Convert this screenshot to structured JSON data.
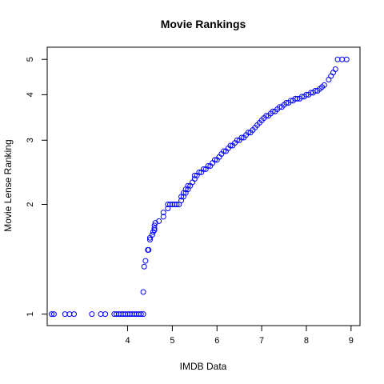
{
  "chart_data": {
    "type": "scatter",
    "title": "Movie Rankings",
    "xlabel": "IMDB Data",
    "ylabel": "Movie Lense Ranking",
    "xlim": [
      2.2,
      9.2
    ],
    "ylim": [
      0.93,
      5.4
    ],
    "y_scale": "log",
    "x_ticks": [
      4,
      5,
      6,
      7,
      8,
      9
    ],
    "y_ticks": [
      1,
      2,
      3,
      4,
      5
    ],
    "grid": false,
    "legend": "none",
    "point_color": "#0000ff",
    "points": [
      [
        2.3,
        1
      ],
      [
        2.35,
        1
      ],
      [
        2.6,
        1
      ],
      [
        2.7,
        1
      ],
      [
        2.8,
        1
      ],
      [
        3.2,
        1
      ],
      [
        3.4,
        1
      ],
      [
        3.5,
        1
      ],
      [
        3.7,
        1
      ],
      [
        3.75,
        1
      ],
      [
        3.8,
        1
      ],
      [
        3.85,
        1
      ],
      [
        3.9,
        1
      ],
      [
        3.95,
        1
      ],
      [
        4.0,
        1
      ],
      [
        4.05,
        1
      ],
      [
        4.1,
        1
      ],
      [
        4.15,
        1
      ],
      [
        4.2,
        1
      ],
      [
        4.25,
        1
      ],
      [
        4.3,
        1
      ],
      [
        4.35,
        1
      ],
      [
        4.35,
        1.15
      ],
      [
        4.37,
        1.35
      ],
      [
        4.4,
        1.4
      ],
      [
        4.45,
        1.5
      ],
      [
        4.47,
        1.5
      ],
      [
        4.5,
        1.6
      ],
      [
        4.5,
        1.62
      ],
      [
        4.55,
        1.65
      ],
      [
        4.57,
        1.68
      ],
      [
        4.6,
        1.7
      ],
      [
        4.6,
        1.72
      ],
      [
        4.6,
        1.75
      ],
      [
        4.62,
        1.78
      ],
      [
        4.7,
        1.8
      ],
      [
        4.8,
        1.85
      ],
      [
        4.8,
        1.9
      ],
      [
        4.9,
        1.95
      ],
      [
        4.9,
        2.0
      ],
      [
        4.95,
        2.0
      ],
      [
        5.0,
        2.0
      ],
      [
        5.05,
        2.0
      ],
      [
        5.1,
        2.0
      ],
      [
        5.15,
        2.0
      ],
      [
        5.2,
        2.05
      ],
      [
        5.2,
        2.1
      ],
      [
        5.25,
        2.1
      ],
      [
        5.25,
        2.15
      ],
      [
        5.3,
        2.15
      ],
      [
        5.3,
        2.2
      ],
      [
        5.35,
        2.2
      ],
      [
        5.35,
        2.25
      ],
      [
        5.4,
        2.25
      ],
      [
        5.45,
        2.3
      ],
      [
        5.5,
        2.35
      ],
      [
        5.5,
        2.4
      ],
      [
        5.55,
        2.4
      ],
      [
        5.6,
        2.45
      ],
      [
        5.65,
        2.45
      ],
      [
        5.7,
        2.5
      ],
      [
        5.75,
        2.5
      ],
      [
        5.8,
        2.55
      ],
      [
        5.85,
        2.55
      ],
      [
        5.9,
        2.6
      ],
      [
        5.95,
        2.65
      ],
      [
        6.0,
        2.65
      ],
      [
        6.05,
        2.7
      ],
      [
        6.1,
        2.75
      ],
      [
        6.15,
        2.8
      ],
      [
        6.2,
        2.8
      ],
      [
        6.25,
        2.85
      ],
      [
        6.3,
        2.9
      ],
      [
        6.35,
        2.9
      ],
      [
        6.4,
        2.95
      ],
      [
        6.45,
        3.0
      ],
      [
        6.5,
        3.0
      ],
      [
        6.55,
        3.05
      ],
      [
        6.6,
        3.05
      ],
      [
        6.65,
        3.1
      ],
      [
        6.7,
        3.15
      ],
      [
        6.75,
        3.15
      ],
      [
        6.8,
        3.2
      ],
      [
        6.85,
        3.25
      ],
      [
        6.9,
        3.3
      ],
      [
        6.95,
        3.35
      ],
      [
        7.0,
        3.4
      ],
      [
        7.05,
        3.45
      ],
      [
        7.1,
        3.5
      ],
      [
        7.15,
        3.5
      ],
      [
        7.2,
        3.55
      ],
      [
        7.25,
        3.6
      ],
      [
        7.3,
        3.6
      ],
      [
        7.35,
        3.65
      ],
      [
        7.4,
        3.7
      ],
      [
        7.45,
        3.7
      ],
      [
        7.5,
        3.75
      ],
      [
        7.55,
        3.8
      ],
      [
        7.6,
        3.8
      ],
      [
        7.65,
        3.85
      ],
      [
        7.7,
        3.85
      ],
      [
        7.75,
        3.9
      ],
      [
        7.8,
        3.9
      ],
      [
        7.85,
        3.9
      ],
      [
        7.9,
        3.95
      ],
      [
        7.95,
        3.95
      ],
      [
        8.0,
        4.0
      ],
      [
        8.05,
        4.0
      ],
      [
        8.1,
        4.05
      ],
      [
        8.15,
        4.05
      ],
      [
        8.2,
        4.1
      ],
      [
        8.25,
        4.1
      ],
      [
        8.3,
        4.15
      ],
      [
        8.35,
        4.2
      ],
      [
        8.4,
        4.25
      ],
      [
        8.5,
        4.4
      ],
      [
        8.55,
        4.5
      ],
      [
        8.6,
        4.6
      ],
      [
        8.65,
        4.7
      ],
      [
        8.7,
        5.0
      ],
      [
        8.8,
        5.0
      ],
      [
        8.9,
        5.0
      ]
    ]
  }
}
